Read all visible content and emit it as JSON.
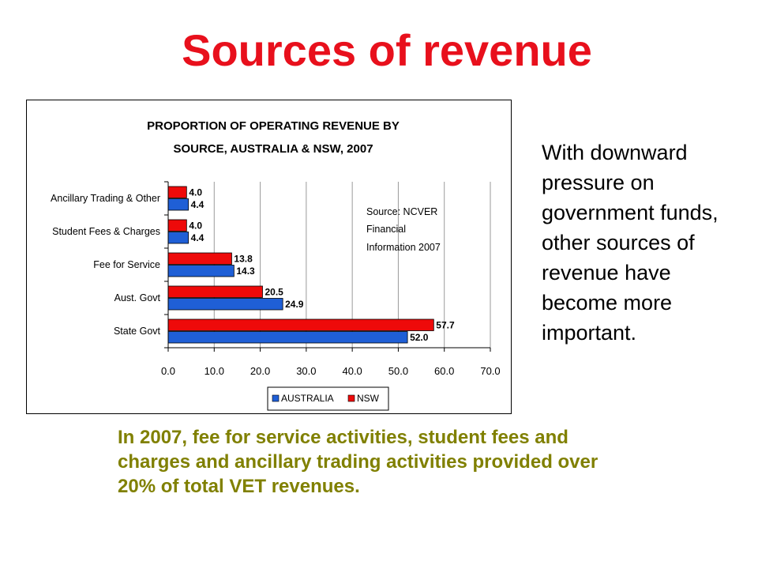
{
  "slide": {
    "title": "Sources of revenue",
    "side_note": "With downward pressure on government funds, other sources of revenue have become more important.",
    "bottom_note": "In 2007, fee for service activities, student fees and charges and ancillary trading activities provided over 20% of total VET revenues."
  },
  "chart_data": {
    "type": "bar",
    "orientation": "horizontal",
    "title": "PROPORTION OF OPERATING REVENUE BY SOURCE, AUSTRALIA & NSW, 2007",
    "title_lines": [
      "PROPORTION OF OPERATING REVENUE BY",
      "SOURCE, AUSTRALIA & NSW, 2007"
    ],
    "categories": [
      "Ancillary Trading & Other",
      "Student Fees & Charges",
      "Fee for Service",
      "Aust. Govt",
      "State Govt"
    ],
    "series": [
      {
        "name": "AUSTRALIA",
        "color": "#1f5fd6",
        "values": [
          4.4,
          4.4,
          14.3,
          24.9,
          52.0
        ],
        "labels": [
          "4.4",
          "4.4",
          "14.3",
          "24.9",
          "52.0"
        ]
      },
      {
        "name": "NSW",
        "color": "#ee0a0a",
        "values": [
          4.0,
          4.0,
          13.8,
          20.5,
          57.7
        ],
        "labels": [
          "4.0",
          "4.0",
          "13.8",
          "20.5",
          "57.7"
        ]
      }
    ],
    "xlim": [
      0,
      70
    ],
    "x_ticks": [
      "0.0",
      "10.0",
      "20.0",
      "30.0",
      "40.0",
      "50.0",
      "60.0",
      "70.0"
    ],
    "xlabel": "",
    "ylabel": "",
    "grid": true,
    "legend_position": "bottom",
    "annotation_lines": [
      "Source: NCVER",
      "Financial",
      "Information 2007"
    ]
  }
}
